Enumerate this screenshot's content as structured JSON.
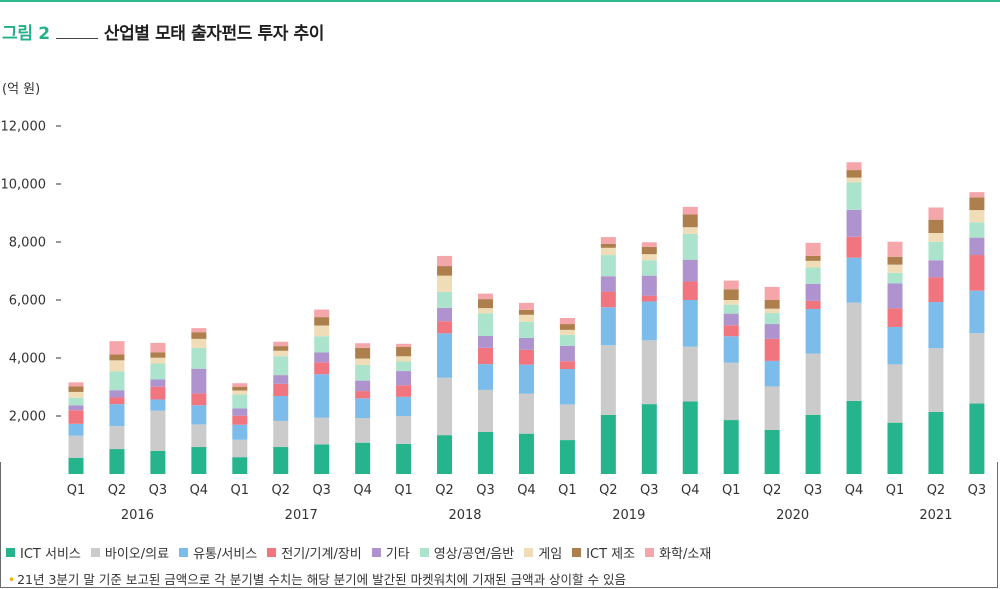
{
  "header": {
    "figure_label": "그림 2",
    "title": "산업별 모태 출자펀드 투자 추이"
  },
  "unit_label": "(억 원)",
  "footnote": {
    "marker": "•",
    "text": "21년 3분기 말 기준 보고된 금액으로 각 분기별 수치는 해당 분기에 발간된 마켓워치에 기재된 금액과 상이할 수 있음"
  },
  "colors": {
    "ict": "#25b48b",
    "bio": "#cbcbcb",
    "distribution": "#7cbceb",
    "electric": "#f0757e",
    "etc": "#ae93cf",
    "media": "#ace3cd",
    "game": "#f0ddb8",
    "ict_mfg": "#ad7f4d",
    "chemical": "#f4a6aa",
    "header_accent": "#22b08a",
    "footnote_dot": "#f0b400"
  },
  "chart_data": {
    "type": "bar",
    "stacked": true,
    "ylim": [
      0,
      12000
    ],
    "yticks": [
      2000,
      4000,
      6000,
      8000,
      10000,
      12000
    ],
    "ytick_labels": [
      "2,000",
      "4,000",
      "6,000",
      "8,000",
      "10,000",
      "12,000"
    ],
    "categories": [
      "Q1",
      "Q2",
      "Q3",
      "Q4",
      "Q1",
      "Q2",
      "Q3",
      "Q4",
      "Q1",
      "Q2",
      "Q3",
      "Q4",
      "Q1",
      "Q2",
      "Q3",
      "Q4",
      "Q1",
      "Q2",
      "Q3",
      "Q4",
      "Q1",
      "Q2",
      "Q3"
    ],
    "years": [
      {
        "label": "2016",
        "count": 4
      },
      {
        "label": "2017",
        "count": 4
      },
      {
        "label": "2018",
        "count": 4
      },
      {
        "label": "2019",
        "count": 4
      },
      {
        "label": "2020",
        "count": 4
      },
      {
        "label": "2021",
        "count": 3
      }
    ],
    "series": [
      {
        "name": "ICT 서비스",
        "color_key": "ict",
        "values": [
          560,
          860,
          800,
          930,
          580,
          930,
          1020,
          1080,
          1040,
          1340,
          1450,
          1390,
          1170,
          2040,
          2410,
          2500,
          1860,
          1520,
          2040,
          2520,
          1770,
          2140,
          2430
        ]
      },
      {
        "name": "바이오/의료",
        "color_key": "bio",
        "values": [
          760,
          790,
          1380,
          780,
          600,
          900,
          920,
          850,
          960,
          1980,
          1450,
          1380,
          1230,
          2400,
          2200,
          1890,
          1980,
          1500,
          2110,
          3390,
          2010,
          2200,
          2430
        ]
      },
      {
        "name": "유통/서비스",
        "color_key": "distribution",
        "values": [
          410,
          760,
          390,
          660,
          520,
          860,
          1500,
          680,
          660,
          1530,
          890,
          1000,
          1220,
          1310,
          1340,
          1610,
          910,
          880,
          1540,
          1550,
          1290,
          1590,
          1460
        ]
      },
      {
        "name": "전기/기계/장비",
        "color_key": "electric",
        "values": [
          470,
          230,
          440,
          410,
          310,
          420,
          410,
          250,
          400,
          420,
          560,
          510,
          270,
          540,
          200,
          640,
          380,
          760,
          280,
          720,
          640,
          850,
          1230
        ]
      },
      {
        "name": "기타",
        "color_key": "etc",
        "values": [
          170,
          250,
          250,
          850,
          250,
          300,
          340,
          360,
          490,
          460,
          410,
          410,
          530,
          530,
          690,
          750,
          400,
          510,
          590,
          930,
          860,
          590,
          600
        ]
      },
      {
        "name": "영상/공연/음반",
        "color_key": "media",
        "values": [
          260,
          650,
          550,
          720,
          480,
          650,
          560,
          540,
          330,
          550,
          780,
          560,
          380,
          730,
          530,
          890,
          310,
          380,
          560,
          950,
          370,
          640,
          530
        ]
      },
      {
        "name": "게임",
        "color_key": "game",
        "values": [
          200,
          380,
          200,
          310,
          140,
          190,
          370,
          220,
          180,
          560,
          180,
          240,
          170,
          250,
          210,
          230,
          160,
          150,
          230,
          160,
          280,
          300,
          420
        ]
      },
      {
        "name": "ICT 제조",
        "color_key": "ict_mfg",
        "values": [
          190,
          200,
          180,
          230,
          130,
          160,
          290,
          370,
          320,
          330,
          310,
          170,
          200,
          140,
          250,
          440,
          370,
          300,
          170,
          260,
          270,
          460,
          440
        ]
      },
      {
        "name": "화학/소재",
        "color_key": "chemical",
        "values": [
          140,
          460,
          330,
          140,
          120,
          150,
          260,
          160,
          110,
          350,
          190,
          240,
          210,
          230,
          160,
          260,
          300,
          450,
          450,
          270,
          520,
          420,
          180
        ]
      }
    ]
  }
}
